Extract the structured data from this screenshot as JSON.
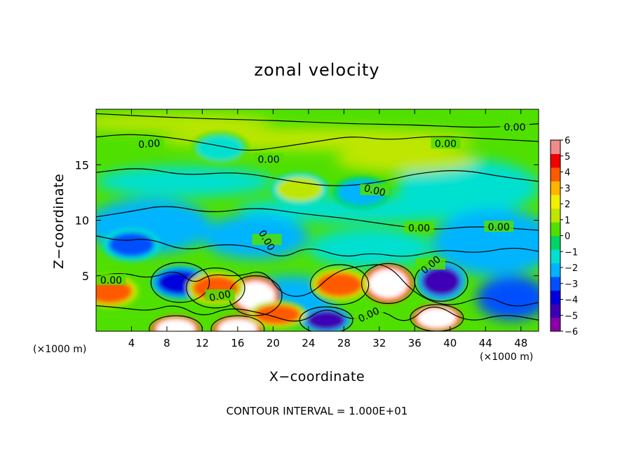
{
  "chart_data": {
    "type": "heatmap",
    "title": "zonal velocity",
    "xlabel": "X−coordinate",
    "ylabel": "Z−coordinate",
    "x_unit_label": "(×1000 m)",
    "z_unit_label": "(×1000 m)",
    "footnote": "CONTOUR INTERVAL = 1.000E+01",
    "xlim": [
      0,
      50
    ],
    "ylim": [
      0,
      20
    ],
    "x_ticks": [
      4,
      8,
      12,
      16,
      20,
      24,
      28,
      32,
      36,
      40,
      44,
      48
    ],
    "x_tick_labels": [
      "4",
      "8",
      "12",
      "16",
      "20",
      "24",
      "28",
      "32",
      "36",
      "40",
      "44",
      "48"
    ],
    "y_ticks": [
      5,
      10,
      15
    ],
    "y_tick_labels": [
      "5",
      "10",
      "15"
    ],
    "colorbar": {
      "min": -6,
      "max": 6,
      "ticks": [
        6,
        5,
        4,
        3,
        2,
        1,
        0,
        -1,
        -2,
        -3,
        -4,
        -5,
        -6
      ],
      "tick_labels": [
        "6",
        "5",
        "4",
        "3",
        "2",
        "1",
        "0",
        "−1",
        "−2",
        "−3",
        "−4",
        "−5",
        "−6"
      ],
      "colors": [
        "#8a00a8",
        "#3c00b4",
        "#0000dc",
        "#0050ff",
        "#00b4ff",
        "#00e0d0",
        "#00d464",
        "#50e000",
        "#bee600",
        "#f0f000",
        "#ffb400",
        "#ff5a00",
        "#f00000",
        "#f08c8c"
      ]
    },
    "contour_label": "0.00",
    "contour_level": 0,
    "features": [
      {
        "x": 18,
        "z": 3.2,
        "value": 6
      },
      {
        "x": 33,
        "z": 4.3,
        "value": 6
      },
      {
        "x": 16,
        "z": 0.2,
        "value": 6
      },
      {
        "x": 9,
        "z": 0.2,
        "value": 6
      },
      {
        "x": 38.5,
        "z": 1.2,
        "value": 6
      },
      {
        "x": 9.5,
        "z": 4.4,
        "value": -4
      },
      {
        "x": 26,
        "z": 1.0,
        "value": -5
      },
      {
        "x": 39,
        "z": 4.5,
        "value": -5
      },
      {
        "x": 30,
        "z": 12.5,
        "value": -2.5
      },
      {
        "x": 4,
        "z": 7.8,
        "value": -3
      },
      {
        "x": 13.5,
        "z": 3.9,
        "value": 4
      },
      {
        "x": 20.5,
        "z": 1.5,
        "value": 3.5
      },
      {
        "x": 27.5,
        "z": 4.2,
        "value": 4
      },
      {
        "x": 1.5,
        "z": 3.6,
        "value": 3.5
      },
      {
        "x": 14,
        "z": 16.5,
        "value": -1.5
      },
      {
        "x": 23,
        "z": 12.8,
        "value": 1.5
      }
    ]
  }
}
